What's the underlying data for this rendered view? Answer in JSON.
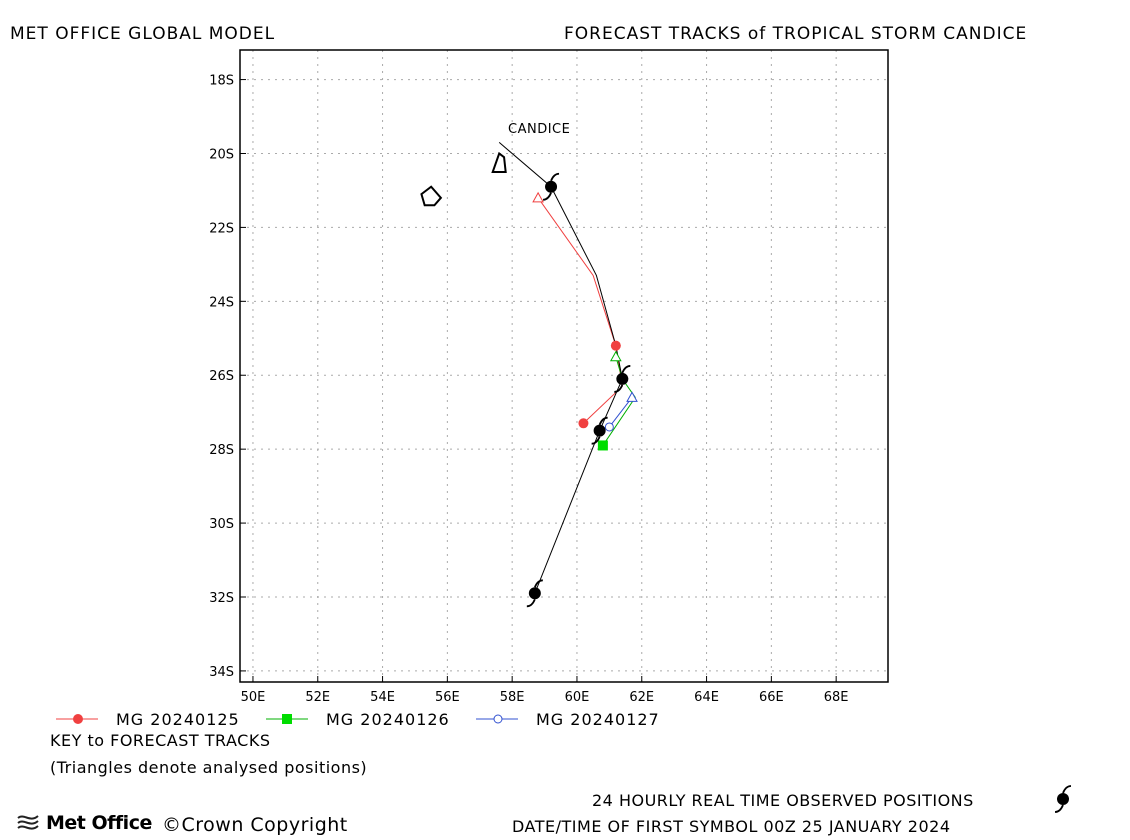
{
  "header": {
    "left_title": "MET OFFICE GLOBAL MODEL",
    "right_title": "FORECAST TRACKS of TROPICAL STORM CANDICE"
  },
  "map": {
    "lon_range": [
      49.6,
      69.6
    ],
    "lat_range": [
      -34.3,
      -17.2
    ],
    "grid": true,
    "x_ticks": [
      "50E",
      "52E",
      "54E",
      "56E",
      "58E",
      "60E",
      "62E",
      "64E",
      "66E",
      "68E"
    ],
    "x_tick_values": [
      50,
      52,
      54,
      56,
      58,
      60,
      62,
      64,
      66,
      68
    ],
    "y_ticks": [
      "18S",
      "20S",
      "22S",
      "24S",
      "26S",
      "28S",
      "30S",
      "32S",
      "34S"
    ],
    "y_tick_values": [
      -18,
      -20,
      -22,
      -24,
      -26,
      -28,
      -30,
      -32,
      -34
    ],
    "storm_label": "CANDICE",
    "colors": {
      "observed": "#000000",
      "mg_20240125": "#f04040",
      "mg_20240126": "#00b000",
      "mg_20240127": "#3050d0"
    }
  },
  "chart_data": {
    "type": "map",
    "observed_track": [
      [
        57.6,
        -19.7
      ],
      [
        59.2,
        -20.9
      ],
      [
        60.6,
        -23.3
      ],
      [
        61.2,
        -25.2
      ],
      [
        61.4,
        -26.1
      ],
      [
        60.7,
        -27.5
      ],
      [
        58.7,
        -31.9
      ]
    ],
    "observed_symbols": [
      [
        59.2,
        -20.9
      ],
      [
        61.4,
        -26.1
      ],
      [
        60.7,
        -27.5
      ],
      [
        58.7,
        -31.9
      ]
    ],
    "islands": [
      [
        [
          57.4,
          -20.5
        ],
        [
          57.6,
          -20.0
        ],
        [
          57.75,
          -20.1
        ],
        [
          57.8,
          -20.5
        ]
      ],
      [
        [
          55.2,
          -21.1
        ],
        [
          55.5,
          -20.9
        ],
        [
          55.8,
          -21.2
        ],
        [
          55.6,
          -21.4
        ],
        [
          55.3,
          -21.4
        ]
      ]
    ],
    "series": [
      {
        "name": "MG 20240125",
        "marker": "circle-filled",
        "analysed": [
          58.8,
          -21.2
        ],
        "track": [
          [
            58.8,
            -21.2
          ],
          [
            60.5,
            -23.3
          ],
          [
            61.2,
            -25.2
          ],
          [
            61.4,
            -26.3
          ],
          [
            60.2,
            -27.3
          ]
        ],
        "points": [
          [
            61.2,
            -25.2
          ],
          [
            60.2,
            -27.3
          ]
        ]
      },
      {
        "name": "MG 20240126",
        "marker": "square-filled",
        "analysed": [
          61.2,
          -25.5
        ],
        "track": [
          [
            61.2,
            -25.5
          ],
          [
            61.4,
            -26.1
          ],
          [
            61.8,
            -26.6
          ],
          [
            60.8,
            -27.9
          ]
        ],
        "points": [
          [
            60.8,
            -27.9
          ]
        ]
      },
      {
        "name": "MG 20240127",
        "marker": "circle-open",
        "analysed": [
          61.7,
          -26.6
        ],
        "track": [
          [
            61.7,
            -26.6
          ],
          [
            61.0,
            -27.4
          ]
        ],
        "points": [
          [
            61.0,
            -27.4
          ]
        ]
      }
    ]
  },
  "legend": {
    "items": [
      {
        "label": "MG 20240125",
        "color": "#f04040",
        "marker": "circle-filled"
      },
      {
        "label": "MG 20240126",
        "color": "#00b000",
        "marker": "square-filled"
      },
      {
        "label": "MG 20240127",
        "color": "#3050d0",
        "marker": "circle-open"
      }
    ],
    "key_title": "KEY to FORECAST TRACKS",
    "key_note": "(Triangles denote analysed positions)"
  },
  "footer": {
    "logo_text": "Met Office",
    "copyright": "©Crown Copyright",
    "observed_note": "24 HOURLY REAL TIME OBSERVED POSITIONS",
    "datetime_note": "DATE/TIME OF FIRST SYMBOL 00Z 25 JANUARY 2024"
  }
}
